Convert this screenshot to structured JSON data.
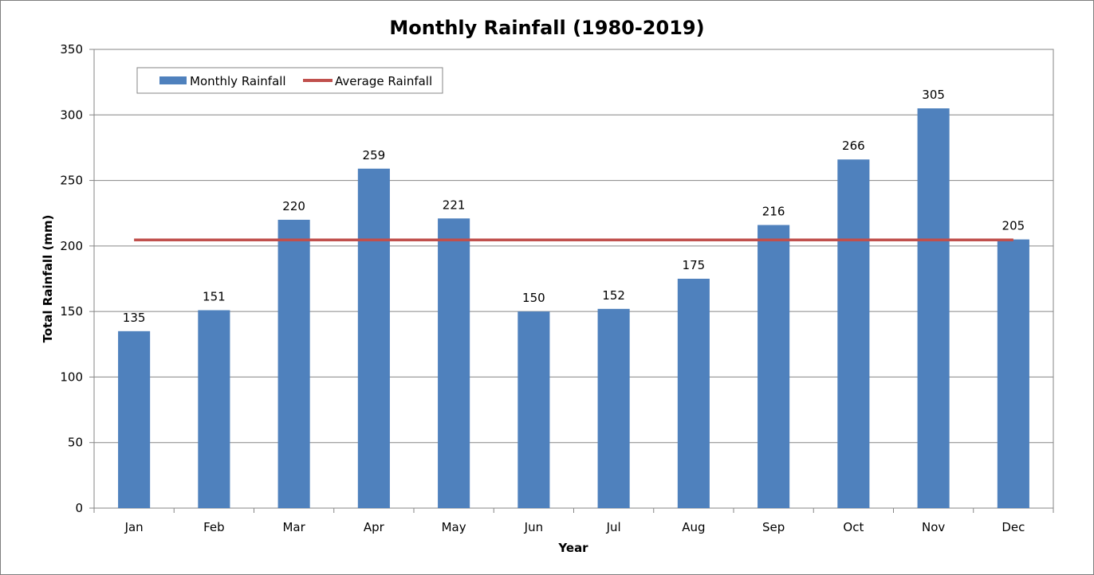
{
  "chart_data": {
    "type": "bar",
    "title": "Monthly Rainfall (1980-2019)",
    "xlabel": "Year",
    "ylabel": "Total Rainfall (mm)",
    "ylim": [
      0,
      350
    ],
    "yticks": [
      0,
      50,
      100,
      150,
      200,
      250,
      300,
      350
    ],
    "categories": [
      "Jan",
      "Feb",
      "Mar",
      "Apr",
      "May",
      "Jun",
      "Jul",
      "Aug",
      "Sep",
      "Oct",
      "Nov",
      "Dec"
    ],
    "series": [
      {
        "name": "Monthly Rainfall",
        "type": "bar",
        "color": "#4f81bd",
        "values": [
          135,
          151,
          220,
          259,
          221,
          150,
          152,
          175,
          216,
          266,
          305,
          205
        ],
        "data_labels": [
          "135",
          "151",
          "220",
          "259",
          "221",
          "150",
          "152",
          "175",
          "216",
          "266",
          "305",
          "205"
        ]
      },
      {
        "name": "Average Rainfall",
        "type": "line",
        "color": "#c0504d",
        "value": 204.6
      }
    ],
    "grid": true,
    "legend_position": "top-left"
  }
}
